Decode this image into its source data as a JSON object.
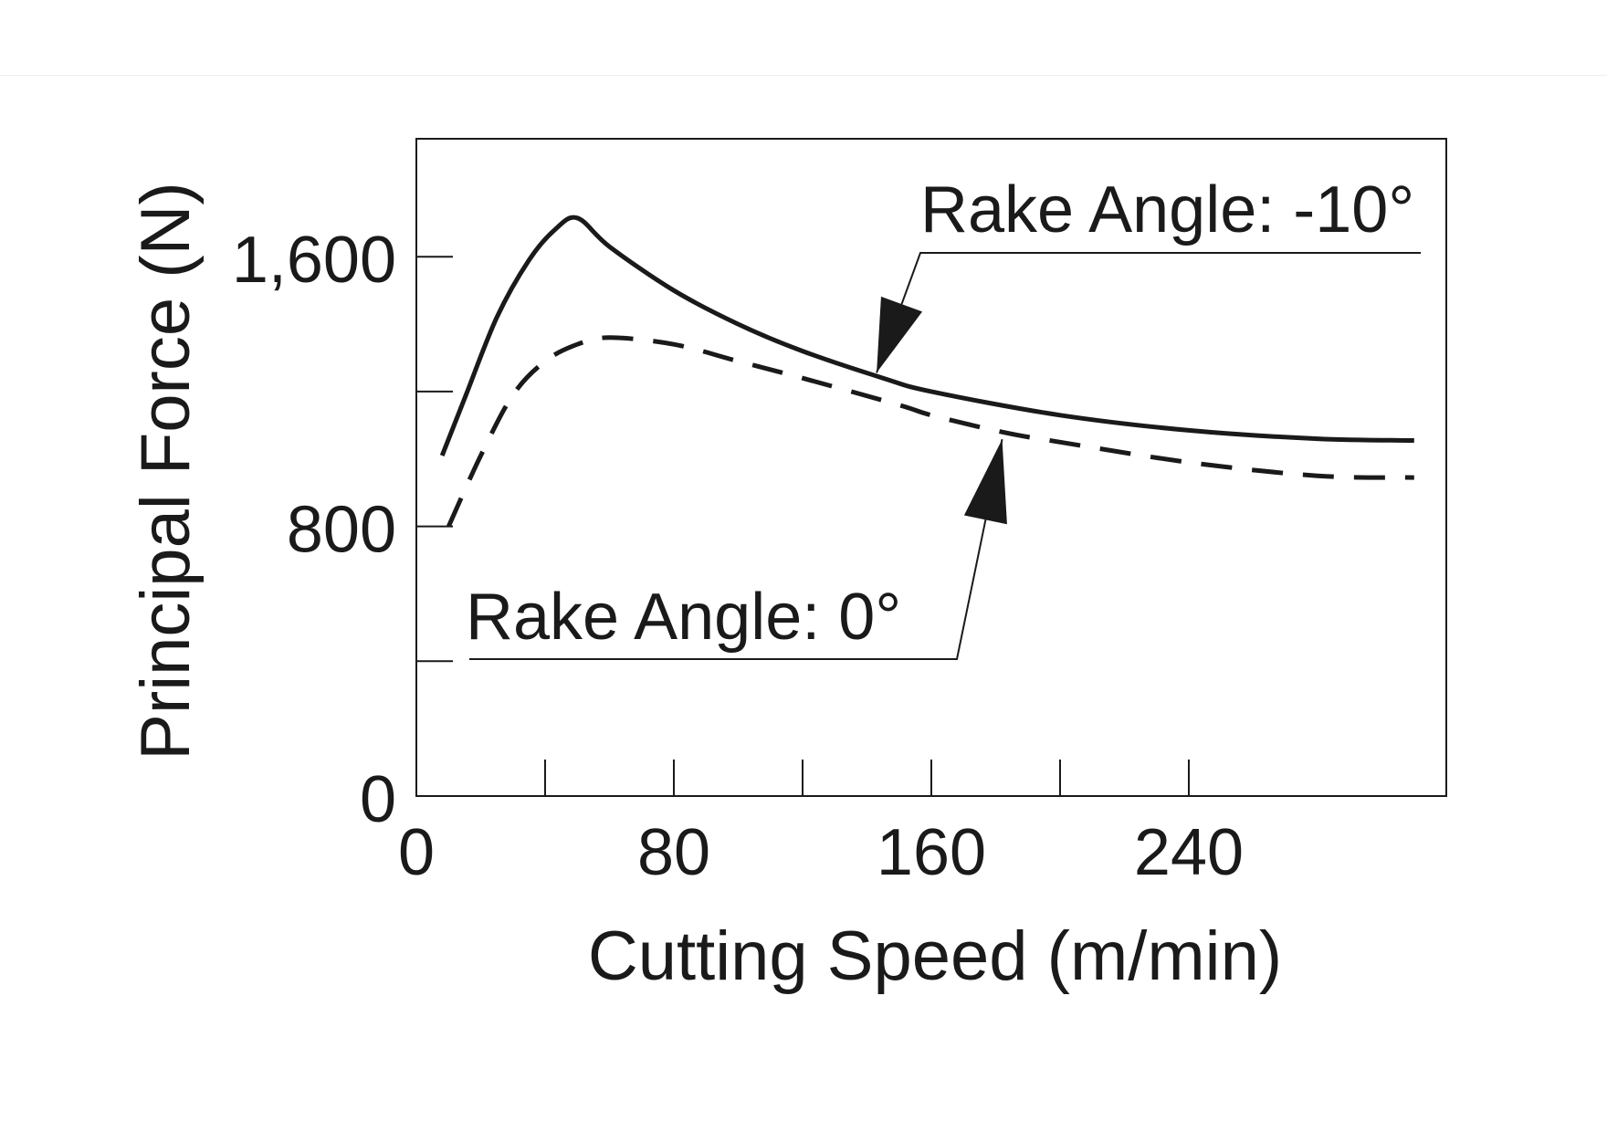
{
  "chart_data": {
    "type": "line",
    "title": "",
    "xlabel": "Cutting Speed (m/min)",
    "ylabel": "Principal Force (N)",
    "xlim": [
      0,
      320
    ],
    "ylim": [
      0,
      1950
    ],
    "xticks": [
      0,
      40,
      80,
      120,
      160,
      200,
      240
    ],
    "xtick_labels": [
      {
        "value": 0,
        "label": "0"
      },
      {
        "value": 80,
        "label": "80"
      },
      {
        "value": 160,
        "label": "160"
      },
      {
        "value": 240,
        "label": "240"
      }
    ],
    "yticks": [
      0,
      400,
      800,
      1200,
      1600
    ],
    "ytick_labels": [
      {
        "value": 0,
        "label": "0"
      },
      {
        "value": 800,
        "label": "800"
      },
      {
        "value": 1600,
        "label": "1,600"
      }
    ],
    "grid": false,
    "legend": "none",
    "series": [
      {
        "name": "Rake Angle: -10°",
        "style": "solid",
        "color": "#1a1a1a",
        "x": [
          8,
          15,
          25,
          35,
          43,
          50,
          60,
          80,
          100,
          120,
          145,
          160,
          200,
          240,
          280,
          310
        ],
        "y": [
          1010,
          1180,
          1420,
          1590,
          1680,
          1715,
          1630,
          1500,
          1400,
          1320,
          1240,
          1200,
          1130,
          1085,
          1060,
          1055
        ]
      },
      {
        "name": "Rake Angle: 0°",
        "style": "dashed",
        "color": "#1a1a1a",
        "x": [
          10,
          20,
          30,
          40,
          50,
          60,
          80,
          100,
          120,
          150,
          160,
          182,
          200,
          240,
          280,
          310
        ],
        "y": [
          800,
          1010,
          1190,
          1290,
          1340,
          1360,
          1340,
          1290,
          1240,
          1160,
          1130,
          1080,
          1050,
          990,
          950,
          945
        ]
      }
    ],
    "annotations": [
      {
        "text": "Rake Angle: -10°",
        "target": {
          "x": 143,
          "y": 1245
        }
      },
      {
        "text": "Rake Angle: 0°",
        "target": {
          "x": 182,
          "y": 1080
        }
      }
    ]
  }
}
